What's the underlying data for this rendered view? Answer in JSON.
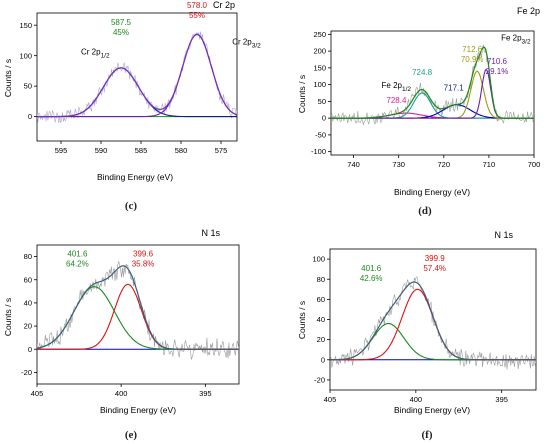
{
  "colors": {
    "raw": "#a8a8cf",
    "fit": "#7b2fb7",
    "baseline": "#0000cc",
    "navy": "#0b1f8f",
    "purple": "#6a1fb1",
    "teal": "#1c9e9a",
    "olive": "#9b9b10",
    "pink": "#e02090",
    "blue2": "#0000c8",
    "green": "#1a8a1a",
    "red": "#dd1111",
    "gray": "#999999",
    "gray_fit": "#3c5f7c"
  },
  "chart_data": [
    {
      "id": "c",
      "panel_label": "(c)",
      "title": "Cr 2p",
      "type": "line",
      "xlabel": "Binding Energy (eV)",
      "ylabel": "Counts / s",
      "xlim": [
        598,
        573
      ],
      "ylim": [
        -40,
        170
      ],
      "xticks": [
        595,
        590,
        585,
        580,
        575
      ],
      "yticks": [
        0,
        50,
        100,
        150
      ],
      "noise": 9,
      "raw_color": "raw",
      "fit_color": "fit",
      "baseline_color": "green",
      "components": [
        {
          "center": 587.5,
          "height": 80,
          "width": 2.2,
          "color": "navy"
        },
        {
          "center": 578.0,
          "height": 135,
          "width": 1.8,
          "color": "purple"
        }
      ],
      "annotations": [
        {
          "lines": [
            "587.5",
            "45%"
          ],
          "x": 587.5,
          "y": 150,
          "color": "green"
        },
        {
          "lines": [
            "578.0",
            "55%"
          ],
          "x": 578.0,
          "y": 178,
          "color": "red"
        },
        {
          "label": "Cr 2p",
          "sub": "1/2",
          "x": 592.5,
          "y": 102,
          "color": "black"
        },
        {
          "label": "Cr 2p",
          "sub": "3/2",
          "x": 573.6,
          "y": 118,
          "color": "black"
        }
      ]
    },
    {
      "id": "d",
      "panel_label": "(d)",
      "title": "Fe 2p",
      "type": "line",
      "xlabel": "Binding Energy (eV)",
      "ylabel": "Counts / s",
      "xlim": [
        745,
        700
      ],
      "ylim": [
        -110,
        260
      ],
      "xticks": [
        740,
        730,
        720,
        710,
        700
      ],
      "yticks": [
        -100,
        -50,
        0,
        50,
        100,
        150,
        200,
        250
      ],
      "noise": 16,
      "raw_color": "gray",
      "fit_color": "green",
      "baseline_color": "green",
      "components": [
        {
          "center": 728.4,
          "height": 15,
          "width": 3.5,
          "color": "pink"
        },
        {
          "center": 724.8,
          "height": 75,
          "width": 1.9,
          "color": "teal"
        },
        {
          "center": 717.1,
          "height": 40,
          "width": 3.0,
          "color": "blue2"
        },
        {
          "center": 712.6,
          "height": 140,
          "width": 1.4,
          "color": "olive"
        },
        {
          "center": 710.6,
          "height": 145,
          "width": 1.0,
          "color": "purple"
        }
      ],
      "annotations": [
        {
          "lines": [
            "728.4"
          ],
          "x": 730.5,
          "y": 45,
          "color": "pink"
        },
        {
          "lines": [
            "724.8"
          ],
          "x": 724.8,
          "y": 128,
          "color": "teal"
        },
        {
          "lines": [
            "717.1"
          ],
          "x": 717.8,
          "y": 82,
          "color": "navy"
        },
        {
          "lines": [
            "712.6",
            "70.9%"
          ],
          "x": 713.7,
          "y": 198,
          "color": "olive"
        },
        {
          "lines": [
            "710.6",
            "29.1%"
          ],
          "x": 708.2,
          "y": 162,
          "color": "purple"
        },
        {
          "label": "Fe 2p",
          "sub": "1/2",
          "x": 733.8,
          "y": 90,
          "color": "black"
        },
        {
          "label": "Fe 2p",
          "sub": "3/2",
          "x": 707.3,
          "y": 232,
          "color": "black"
        }
      ]
    },
    {
      "id": "e",
      "panel_label": "(e)",
      "title": "N 1s",
      "type": "line",
      "xlabel": "Binding Energy (eV)",
      "ylabel": "Counts / s",
      "xlim": [
        405,
        393
      ],
      "ylim": [
        -30,
        90
      ],
      "xticks": [
        405,
        400,
        395
      ],
      "yticks": [
        -20,
        0,
        20,
        40,
        60,
        80
      ],
      "noise": 7,
      "raw_color": "gray",
      "fit_color": "gray_fit",
      "baseline_color": "blue2",
      "components": [
        {
          "center": 401.6,
          "height": 54,
          "width": 1.2,
          "color": "green"
        },
        {
          "center": 399.6,
          "height": 56,
          "width": 0.8,
          "color": "red"
        }
      ],
      "annotations": [
        {
          "lines": [
            "401.6",
            "64.2%"
          ],
          "x": 402.6,
          "y": 80,
          "color": "green"
        },
        {
          "lines": [
            "399.6",
            "35.8%"
          ],
          "x": 398.7,
          "y": 80,
          "color": "red"
        }
      ]
    },
    {
      "id": "f",
      "panel_label": "(f)",
      "title": "N 1s",
      "type": "line",
      "xlabel": "Binding Energy (eV)",
      "ylabel": "Counts / s",
      "xlim": [
        405,
        393
      ],
      "ylim": [
        -30,
        110
      ],
      "xticks": [
        405,
        400,
        395
      ],
      "yticks": [
        -20,
        0,
        20,
        40,
        60,
        80,
        100
      ],
      "noise": 7,
      "raw_color": "gray",
      "fit_color": "gray_fit",
      "baseline_color": "blue2",
      "components": [
        {
          "center": 401.6,
          "height": 36,
          "width": 0.9,
          "color": "green"
        },
        {
          "center": 399.9,
          "height": 70,
          "width": 0.9,
          "color": "red"
        }
      ],
      "annotations": [
        {
          "lines": [
            "401.6",
            "42.6%"
          ],
          "x": 402.6,
          "y": 88,
          "color": "green"
        },
        {
          "lines": [
            "399.9",
            "57.4%"
          ],
          "x": 398.9,
          "y": 98,
          "color": "red"
        }
      ]
    }
  ]
}
